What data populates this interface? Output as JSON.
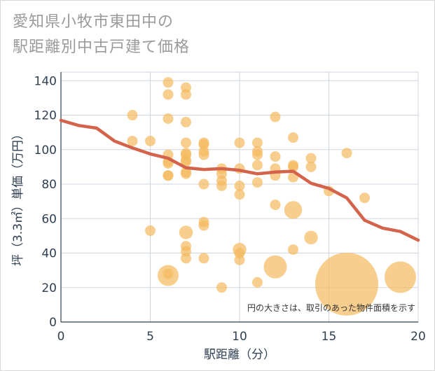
{
  "title_line1": "愛知県小牧市東田中の",
  "title_line2": "駅距離別中古戸建て価格",
  "chart_data": {
    "type": "scatter",
    "title": "愛知県小牧市東田中の駅距離別中古戸建て価格",
    "xlabel": "駅距離（分）",
    "ylabel": "坪（3.3㎡）単価（万円）",
    "xlim": [
      0,
      20
    ],
    "ylim": [
      0,
      145
    ],
    "xticks": [
      0,
      5,
      10,
      15,
      20
    ],
    "yticks": [
      0,
      20,
      40,
      60,
      80,
      100,
      120,
      140
    ],
    "grid": true,
    "note": "円の大きさは、取引のあった物件面積を示す",
    "colors": {
      "bubble": "#f3b95c",
      "line": "#d4634b",
      "grid": "#cfd6de",
      "axis": "#2f3f52"
    },
    "points": [
      {
        "x": 4,
        "y": 120,
        "s": 1
      },
      {
        "x": 4,
        "y": 105,
        "s": 1
      },
      {
        "x": 5,
        "y": 105,
        "s": 1
      },
      {
        "x": 5,
        "y": 53,
        "s": 1
      },
      {
        "x": 6,
        "y": 139,
        "s": 1
      },
      {
        "x": 6,
        "y": 132,
        "s": 1
      },
      {
        "x": 6,
        "y": 118,
        "s": 1
      },
      {
        "x": 6,
        "y": 97,
        "s": 1
      },
      {
        "x": 6,
        "y": 93,
        "s": 1
      },
      {
        "x": 6,
        "y": 92,
        "s": 1
      },
      {
        "x": 6,
        "y": 85,
        "s": 1
      },
      {
        "x": 6,
        "y": 85,
        "s": 1
      },
      {
        "x": 6,
        "y": 28,
        "s": 1
      },
      {
        "x": 6,
        "y": 27,
        "s": 2
      },
      {
        "x": 7,
        "y": 136,
        "s": 1
      },
      {
        "x": 7,
        "y": 132,
        "s": 1
      },
      {
        "x": 7,
        "y": 116,
        "s": 1
      },
      {
        "x": 7,
        "y": 104,
        "s": 1
      },
      {
        "x": 7,
        "y": 98,
        "s": 1
      },
      {
        "x": 7,
        "y": 97,
        "s": 1
      },
      {
        "x": 7,
        "y": 94,
        "s": 1
      },
      {
        "x": 7,
        "y": 93,
        "s": 1
      },
      {
        "x": 7,
        "y": 87,
        "s": 1
      },
      {
        "x": 7,
        "y": 86,
        "s": 1
      },
      {
        "x": 7,
        "y": 52,
        "s": 1.3
      },
      {
        "x": 7,
        "y": 44,
        "s": 1
      },
      {
        "x": 7,
        "y": 41,
        "s": 1
      },
      {
        "x": 7,
        "y": 37,
        "s": 1
      },
      {
        "x": 8,
        "y": 104,
        "s": 1
      },
      {
        "x": 8,
        "y": 103,
        "s": 1
      },
      {
        "x": 8,
        "y": 99,
        "s": 1
      },
      {
        "x": 8,
        "y": 97,
        "s": 1
      },
      {
        "x": 8,
        "y": 80,
        "s": 1
      },
      {
        "x": 8,
        "y": 58,
        "s": 1
      },
      {
        "x": 8,
        "y": 56,
        "s": 1
      },
      {
        "x": 8,
        "y": 37,
        "s": 1
      },
      {
        "x": 9,
        "y": 89,
        "s": 1
      },
      {
        "x": 9,
        "y": 86,
        "s": 1
      },
      {
        "x": 9,
        "y": 82,
        "s": 1
      },
      {
        "x": 9,
        "y": 79,
        "s": 1
      },
      {
        "x": 9,
        "y": 20,
        "s": 1
      },
      {
        "x": 10,
        "y": 104,
        "s": 1
      },
      {
        "x": 10,
        "y": 89,
        "s": 1
      },
      {
        "x": 10,
        "y": 79,
        "s": 1
      },
      {
        "x": 10,
        "y": 74,
        "s": 1
      },
      {
        "x": 10,
        "y": 42,
        "s": 1.3
      },
      {
        "x": 10,
        "y": 40,
        "s": 1
      },
      {
        "x": 10,
        "y": 36,
        "s": 1
      },
      {
        "x": 11,
        "y": 104,
        "s": 1
      },
      {
        "x": 11,
        "y": 99,
        "s": 1
      },
      {
        "x": 11,
        "y": 97,
        "s": 1
      },
      {
        "x": 11,
        "y": 91,
        "s": 1
      },
      {
        "x": 11,
        "y": 81,
        "s": 1
      },
      {
        "x": 11,
        "y": 23,
        "s": 1
      },
      {
        "x": 12,
        "y": 119,
        "s": 1
      },
      {
        "x": 12,
        "y": 96,
        "s": 1
      },
      {
        "x": 12,
        "y": 89,
        "s": 1
      },
      {
        "x": 12,
        "y": 85,
        "s": 1
      },
      {
        "x": 12,
        "y": 68,
        "s": 1
      },
      {
        "x": 12,
        "y": 32,
        "s": 2.2
      },
      {
        "x": 13,
        "y": 107,
        "s": 1
      },
      {
        "x": 13,
        "y": 91,
        "s": 1
      },
      {
        "x": 13,
        "y": 90,
        "s": 1
      },
      {
        "x": 13,
        "y": 84,
        "s": 1
      },
      {
        "x": 13,
        "y": 65,
        "s": 1.7
      },
      {
        "x": 13,
        "y": 42,
        "s": 1
      },
      {
        "x": 14,
        "y": 95,
        "s": 1
      },
      {
        "x": 14,
        "y": 90,
        "s": 1
      },
      {
        "x": 14,
        "y": 49,
        "s": 1.3
      },
      {
        "x": 15,
        "y": 76,
        "s": 1
      },
      {
        "x": 16,
        "y": 98,
        "s": 1
      },
      {
        "x": 16,
        "y": 22,
        "s": 6
      },
      {
        "x": 17,
        "y": 72,
        "s": 1
      },
      {
        "x": 19,
        "y": 26,
        "s": 3
      }
    ],
    "trend": {
      "x": [
        0,
        1,
        2,
        3,
        4,
        5,
        6,
        7,
        8,
        9,
        10,
        11,
        12,
        13,
        14,
        15,
        16,
        17,
        18,
        19,
        20
      ],
      "y": [
        117,
        114,
        112.5,
        105,
        101,
        97.5,
        95,
        89.5,
        88.5,
        89,
        88,
        86,
        87,
        87.5,
        80.5,
        77.5,
        72,
        59,
        54.5,
        52.5,
        47.5
      ]
    }
  }
}
